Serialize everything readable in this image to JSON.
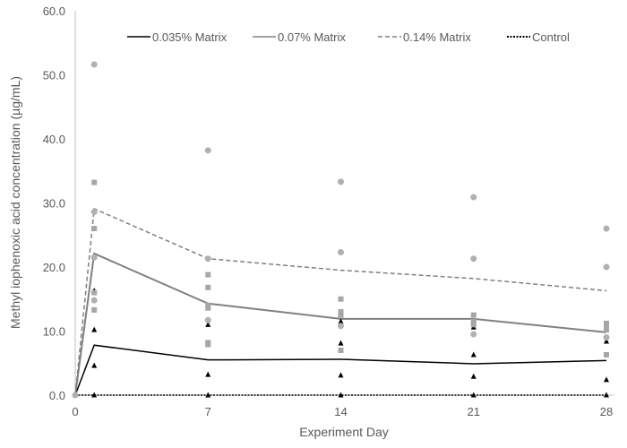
{
  "chart_data": {
    "type": "line",
    "title": "",
    "xlabel": "Experiment Day",
    "ylabel": "Methyl iophenoxic acid concentration (µg/mL)",
    "xlim": [
      0,
      28
    ],
    "ylim": [
      0,
      60
    ],
    "x_ticks": [
      "0",
      "7",
      "14",
      "21",
      "28"
    ],
    "y_ticks": [
      "0.0",
      "10.0",
      "20.0",
      "30.0",
      "40.0",
      "50.0",
      "60.0"
    ],
    "legend_position": "top",
    "grid": false,
    "x": [
      0,
      1,
      7,
      14,
      21,
      28
    ],
    "series": [
      {
        "name": "0.035% Matrix",
        "style": "solid",
        "color": "#000000",
        "values": [
          0,
          7.8,
          5.5,
          5.6,
          4.9,
          5.4
        ]
      },
      {
        "name": "0.07% Matrix",
        "style": "solid",
        "color": "#808080",
        "values": [
          0,
          22.1,
          14.3,
          11.9,
          11.9,
          9.8
        ]
      },
      {
        "name": "0.14% Matrix",
        "style": "dashed",
        "color": "#808080",
        "values": [
          0,
          29.1,
          21.3,
          19.5,
          18.2,
          16.3
        ]
      },
      {
        "name": "Control",
        "style": "dotted",
        "color": "#000000",
        "values": [
          0,
          0,
          0,
          0,
          0,
          0
        ]
      }
    ],
    "points": [
      {
        "marker": "triangle",
        "color": "#000000",
        "data": [
          [
            1,
            16.3
          ],
          [
            1,
            10.2
          ],
          [
            1,
            4.6
          ],
          [
            1,
            0
          ],
          [
            7,
            11.0
          ],
          [
            7,
            7.9
          ],
          [
            7,
            3.2
          ],
          [
            7,
            0
          ],
          [
            14,
            11.5
          ],
          [
            14,
            8.1
          ],
          [
            14,
            3.1
          ],
          [
            14,
            0
          ],
          [
            21,
            10.6
          ],
          [
            21,
            6.3
          ],
          [
            21,
            2.9
          ],
          [
            21,
            0
          ],
          [
            28,
            8.4
          ],
          [
            28,
            2.4
          ],
          [
            28,
            0
          ]
        ]
      },
      {
        "marker": "square",
        "color": "#a6a6a6",
        "data": [
          [
            1,
            33.2
          ],
          [
            1,
            26.0
          ],
          [
            1,
            16.0
          ],
          [
            1,
            13.3
          ],
          [
            7,
            18.8
          ],
          [
            7,
            16.8
          ],
          [
            7,
            14.0
          ],
          [
            7,
            13.6
          ],
          [
            7,
            8.2
          ],
          [
            7,
            7.9
          ],
          [
            14,
            15.0
          ],
          [
            14,
            13.0
          ],
          [
            14,
            12.5
          ],
          [
            14,
            7.0
          ],
          [
            21,
            12.5
          ],
          [
            21,
            11.5
          ],
          [
            21,
            11.0
          ],
          [
            28,
            11.2
          ],
          [
            28,
            10.8
          ],
          [
            28,
            10.2
          ],
          [
            28,
            6.3
          ]
        ]
      },
      {
        "marker": "circle",
        "color": "#b0b0b0",
        "data": [
          [
            0,
            0
          ],
          [
            1,
            51.6
          ],
          [
            1,
            28.6
          ],
          [
            1,
            21.5
          ],
          [
            1,
            14.8
          ],
          [
            7,
            38.2
          ],
          [
            7,
            21.3
          ],
          [
            7,
            11.7
          ],
          [
            14,
            33.3
          ],
          [
            14,
            22.3
          ],
          [
            14,
            10.8
          ],
          [
            21,
            30.9
          ],
          [
            21,
            21.3
          ],
          [
            21,
            9.5
          ],
          [
            28,
            26.0
          ],
          [
            28,
            20.0
          ],
          [
            28,
            9.0
          ]
        ]
      }
    ]
  }
}
